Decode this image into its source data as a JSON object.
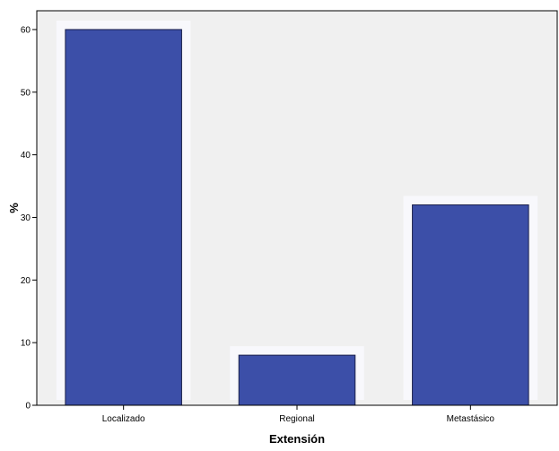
{
  "chart_data": {
    "type": "bar",
    "categories": [
      "Localizado",
      "Regional",
      "Metastásico"
    ],
    "values": [
      60,
      8,
      32
    ],
    "title": "",
    "xlabel": "Extensión",
    "ylabel": "%",
    "ylim": [
      0,
      63
    ],
    "yticks": [
      "0",
      "10",
      "20",
      "30",
      "40",
      "50",
      "60"
    ],
    "grid": false,
    "colors": {
      "bar_fill": "#3c4fa8",
      "bar_stroke": "#1a1f4a",
      "plot_background": "#f0f0f0",
      "bar_halo": "#f8f8fc"
    }
  }
}
